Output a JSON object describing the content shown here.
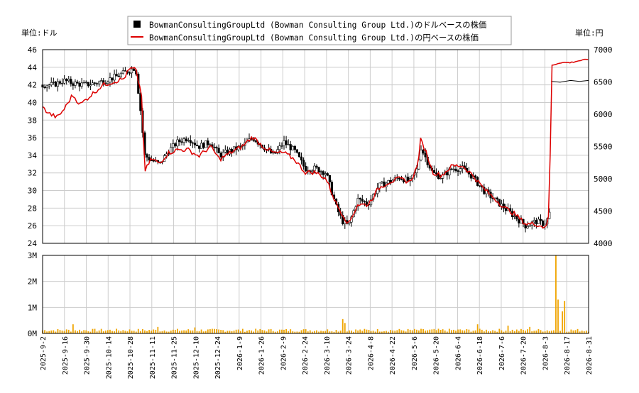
{
  "chart_data": {
    "type": "line",
    "legend": {
      "placement": "top-center",
      "entries": [
        {
          "name": "BowmanConsultingGroupLtd (Bowman Consulting Group Ltd.)のドルベースの株価",
          "color": "#000000",
          "marker": "square"
        },
        {
          "name": "BowmanConsultingGroupLtd (Bowman Consulting Group Ltd.)の円ベースの株価",
          "color": "#dd0000",
          "marker": "line"
        }
      ]
    },
    "y_left": {
      "label": "単位:ドル",
      "ylim": [
        24,
        46
      ],
      "ticks": [
        "24",
        "26",
        "28",
        "30",
        "32",
        "34",
        "36",
        "38",
        "40",
        "42",
        "44",
        "46"
      ]
    },
    "y_right": {
      "label": "単位:円",
      "ylim": [
        4000,
        7000
      ],
      "ticks": [
        "4000",
        "4500",
        "5000",
        "5500",
        "6000",
        "6500",
        "7000"
      ]
    },
    "volume_axis": {
      "ylim": [
        0,
        3000000
      ],
      "ticks": [
        "0M",
        "1M",
        "2M",
        "3M"
      ]
    },
    "x_ticks": [
      "2025-9-2",
      "2025-9-16",
      "2025-9-30",
      "2025-10-14",
      "2025-10-28",
      "2025-11-11",
      "2025-11-25",
      "2025-12-10",
      "2025-12-24",
      "2026-1-9",
      "2026-1-26",
      "2026-2-9",
      "2026-2-24",
      "2026-3-10",
      "2026-3-24",
      "2026-4-8",
      "2026-4-22",
      "2026-5-6",
      "2026-5-20",
      "2026-6-4",
      "2026-6-18",
      "2026-7-6",
      "2026-7-20",
      "2026-8-3",
      "2026-8-17",
      "2026-8-31"
    ],
    "x_range_days": [
      0,
      364
    ],
    "usd_price": [
      [
        0,
        42.0
      ],
      [
        7,
        42.0
      ],
      [
        14,
        42.5
      ],
      [
        20,
        42.2
      ],
      [
        28,
        42.0
      ],
      [
        35,
        42.2
      ],
      [
        42,
        42.5
      ],
      [
        50,
        43.0
      ],
      [
        56,
        43.5
      ],
      [
        62,
        44.0
      ],
      [
        66,
        38.0
      ],
      [
        68,
        34.0
      ],
      [
        72,
        33.5
      ],
      [
        78,
        33.0
      ],
      [
        84,
        34.5
      ],
      [
        90,
        35.5
      ],
      [
        97,
        36.0
      ],
      [
        104,
        35.0
      ],
      [
        112,
        35.5
      ],
      [
        118,
        34.0
      ],
      [
        125,
        34.5
      ],
      [
        133,
        35.0
      ],
      [
        140,
        36.0
      ],
      [
        147,
        35.0
      ],
      [
        154,
        34.0
      ],
      [
        161,
        35.5
      ],
      [
        168,
        34.5
      ],
      [
        175,
        32.5
      ],
      [
        182,
        32.5
      ],
      [
        189,
        32.0
      ],
      [
        196,
        28.0
      ],
      [
        200,
        26.5
      ],
      [
        204,
        26.0
      ],
      [
        210,
        29.0
      ],
      [
        217,
        28.5
      ],
      [
        224,
        30.5
      ],
      [
        231,
        31.0
      ],
      [
        238,
        31.5
      ],
      [
        245,
        31.0
      ],
      [
        250,
        32.5
      ],
      [
        252,
        35.0
      ],
      [
        256,
        33.5
      ],
      [
        260,
        32.0
      ],
      [
        266,
        31.5
      ],
      [
        273,
        32.5
      ],
      [
        280,
        32.5
      ],
      [
        287,
        31.5
      ],
      [
        294,
        30.0
      ],
      [
        301,
        29.0
      ],
      [
        308,
        28.0
      ],
      [
        315,
        27.0
      ],
      [
        322,
        26.0
      ],
      [
        329,
        26.5
      ],
      [
        334,
        26.2
      ],
      [
        336,
        26.5
      ],
      [
        338,
        27.5
      ],
      [
        339,
        42.4
      ],
      [
        345,
        42.3
      ],
      [
        352,
        42.5
      ],
      [
        358,
        42.4
      ],
      [
        364,
        42.5
      ]
    ],
    "jpy_price": [
      [
        0,
        6100
      ],
      [
        5,
        6000
      ],
      [
        10,
        5950
      ],
      [
        15,
        6100
      ],
      [
        20,
        6300
      ],
      [
        25,
        6150
      ],
      [
        30,
        6250
      ],
      [
        35,
        6350
      ],
      [
        40,
        6450
      ],
      [
        47,
        6500
      ],
      [
        54,
        6550
      ],
      [
        58,
        6700
      ],
      [
        62,
        6700
      ],
      [
        66,
        6300
      ],
      [
        68,
        5100
      ],
      [
        72,
        5300
      ],
      [
        78,
        5250
      ],
      [
        84,
        5400
      ],
      [
        90,
        5450
      ],
      [
        97,
        5450
      ],
      [
        104,
        5350
      ],
      [
        112,
        5500
      ],
      [
        118,
        5300
      ],
      [
        125,
        5400
      ],
      [
        133,
        5500
      ],
      [
        140,
        5650
      ],
      [
        147,
        5500
      ],
      [
        154,
        5400
      ],
      [
        161,
        5400
      ],
      [
        168,
        5300
      ],
      [
        175,
        5100
      ],
      [
        182,
        5100
      ],
      [
        189,
        5000
      ],
      [
        196,
        4600
      ],
      [
        200,
        4450
      ],
      [
        204,
        4300
      ],
      [
        210,
        4600
      ],
      [
        217,
        4600
      ],
      [
        224,
        4850
      ],
      [
        231,
        4950
      ],
      [
        238,
        5000
      ],
      [
        245,
        4950
      ],
      [
        250,
        5200
      ],
      [
        252,
        5600
      ],
      [
        256,
        5400
      ],
      [
        260,
        5100
      ],
      [
        266,
        5050
      ],
      [
        273,
        5200
      ],
      [
        280,
        5200
      ],
      [
        287,
        5050
      ],
      [
        294,
        4850
      ],
      [
        301,
        4700
      ],
      [
        308,
        4550
      ],
      [
        315,
        4450
      ],
      [
        322,
        4300
      ],
      [
        329,
        4300
      ],
      [
        334,
        4250
      ],
      [
        336,
        4300
      ],
      [
        338,
        4450
      ],
      [
        339,
        6750
      ],
      [
        345,
        6800
      ],
      [
        352,
        6800
      ],
      [
        358,
        6830
      ],
      [
        364,
        6850
      ]
    ],
    "volume_spikes": [
      [
        20,
        350000
      ],
      [
        77,
        250000
      ],
      [
        102,
        230000
      ],
      [
        130,
        350000
      ],
      [
        160,
        330000
      ],
      [
        200,
        550000
      ],
      [
        201,
        1250000
      ],
      [
        202,
        400000
      ],
      [
        290,
        350000
      ],
      [
        305,
        320000
      ],
      [
        310,
        300000
      ],
      [
        325,
        250000
      ],
      [
        342,
        3000000
      ],
      [
        344,
        1300000
      ],
      [
        346,
        800000
      ],
      [
        347,
        850000
      ],
      [
        348,
        1250000
      ],
      [
        350,
        550000
      ]
    ],
    "volume_base": 100000,
    "grid": true
  }
}
